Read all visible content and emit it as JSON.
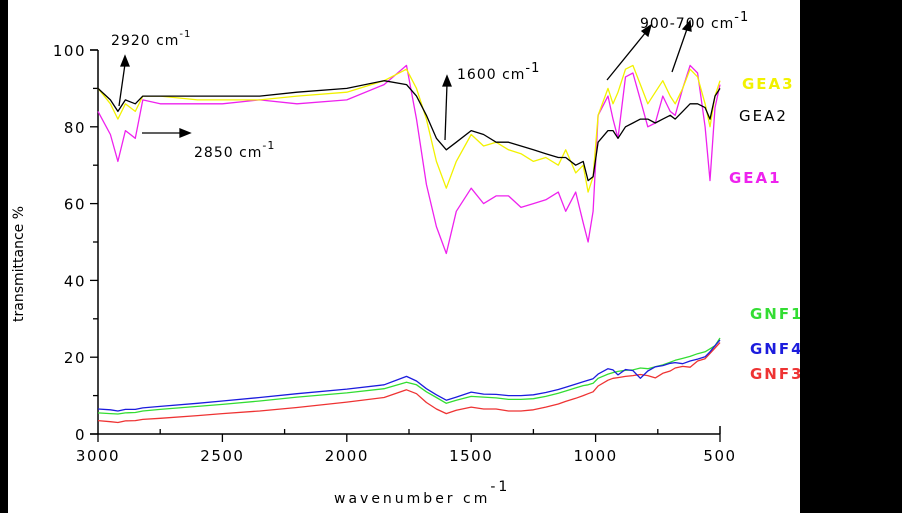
{
  "chart_data": {
    "type": "line",
    "title": "",
    "xlabel": "wavenumber cm",
    "xlabel_sup": "-1",
    "ylabel": "transmittance %",
    "xlim": [
      3000,
      500
    ],
    "ylim": [
      0,
      100
    ],
    "x_ticks": [
      3000,
      2500,
      2000,
      1500,
      1000,
      500
    ],
    "y_ticks": [
      0,
      20,
      40,
      60,
      80,
      100
    ],
    "grid": false,
    "legend_position": "right, inline labels",
    "annotations": [
      {
        "text": "2920 cm",
        "sup": "-1"
      },
      {
        "text": "2850 cm",
        "sup": "-1"
      },
      {
        "text": "1600 cm",
        "sup": "-1"
      },
      {
        "text": "900-700 cm",
        "sup": "-1"
      }
    ],
    "x": [
      3000,
      2950,
      2920,
      2890,
      2850,
      2820,
      2750,
      2600,
      2500,
      2350,
      2200,
      2000,
      1850,
      1760,
      1720,
      1680,
      1640,
      1600,
      1560,
      1500,
      1450,
      1400,
      1350,
      1300,
      1250,
      1200,
      1150,
      1120,
      1080,
      1050,
      1030,
      1010,
      990,
      950,
      930,
      910,
      880,
      850,
      820,
      790,
      760,
      730,
      700,
      680,
      650,
      620,
      590,
      560,
      540,
      520,
      500
    ],
    "series": [
      {
        "name": "GEA3",
        "color": "#f2f200",
        "values": [
          90,
          86,
          82,
          86,
          84,
          88,
          88,
          87,
          87,
          87,
          88,
          89,
          92,
          95,
          90,
          82,
          71,
          64,
          71,
          78,
          75,
          76,
          74,
          73,
          71,
          72,
          70,
          74,
          68,
          70,
          63,
          67,
          83,
          90,
          86,
          89,
          95,
          96,
          91,
          86,
          89,
          92,
          88,
          86,
          90,
          95,
          93,
          86,
          80,
          88,
          92
        ]
      },
      {
        "name": "GEA2",
        "color": "#000000",
        "values": [
          90,
          87,
          84,
          87,
          86,
          88,
          88,
          88,
          88,
          88,
          89,
          90,
          92,
          91,
          88,
          83,
          77,
          74,
          76,
          79,
          78,
          76,
          76,
          75,
          74,
          73,
          72,
          72,
          70,
          71,
          66,
          67,
          76,
          79,
          79,
          77,
          80,
          81,
          82,
          82,
          81,
          82,
          83,
          82,
          84,
          86,
          86,
          85,
          82,
          88,
          90
        ]
      },
      {
        "name": "GEA1",
        "color": "#ee22ee",
        "values": [
          84,
          78,
          71,
          79,
          77,
          87,
          86,
          86,
          86,
          87,
          86,
          87,
          91,
          96,
          82,
          65,
          54,
          47,
          58,
          64,
          60,
          62,
          62,
          59,
          60,
          61,
          63,
          58,
          63,
          55,
          50,
          58,
          83,
          88,
          82,
          77,
          93,
          94,
          87,
          80,
          81,
          88,
          84,
          83,
          90,
          96,
          94,
          80,
          66,
          85,
          91
        ]
      },
      {
        "name": "GNF1",
        "color": "#33dd33",
        "values": [
          5.5,
          5.3,
          5.2,
          5.5,
          5.6,
          6.0,
          6.4,
          7.2,
          7.7,
          8.6,
          9.6,
          10.7,
          11.8,
          13.5,
          12.8,
          11.0,
          9.5,
          8.0,
          8.8,
          9.8,
          9.6,
          9.4,
          9.0,
          9.0,
          9.2,
          9.8,
          10.6,
          11.2,
          12.0,
          12.6,
          12.8,
          13.2,
          14.5,
          15.6,
          16.0,
          16.3,
          16.6,
          16.7,
          17.2,
          17.0,
          17.5,
          18.0,
          18.7,
          19.2,
          19.7,
          20.2,
          20.9,
          21.4,
          22.2,
          23.0,
          25.0
        ]
      },
      {
        "name": "GNF4",
        "color": "#1c1cdd",
        "values": [
          6.5,
          6.3,
          6.0,
          6.4,
          6.4,
          6.8,
          7.2,
          8.0,
          8.6,
          9.5,
          10.5,
          11.7,
          12.8,
          15.0,
          13.8,
          11.8,
          10.2,
          8.8,
          9.6,
          10.9,
          10.4,
          10.3,
          10.0,
          10.0,
          10.2,
          10.8,
          11.6,
          12.2,
          13.0,
          13.6,
          14.0,
          14.4,
          15.6,
          17.0,
          16.7,
          15.4,
          16.8,
          16.5,
          14.5,
          16.4,
          17.5,
          17.8,
          18.4,
          18.6,
          18.3,
          19.0,
          19.5,
          20.1,
          21.4,
          23.0,
          24.5
        ]
      },
      {
        "name": "GNF3",
        "color": "#ee3333",
        "values": [
          3.5,
          3.2,
          3.0,
          3.4,
          3.5,
          3.8,
          4.1,
          4.8,
          5.3,
          6.0,
          6.9,
          8.3,
          9.5,
          11.5,
          10.5,
          8.2,
          6.5,
          5.3,
          6.2,
          7.0,
          6.5,
          6.5,
          6.0,
          6.0,
          6.3,
          7.0,
          7.8,
          8.5,
          9.3,
          10.0,
          10.5,
          11.0,
          12.5,
          14.0,
          14.5,
          14.7,
          15.0,
          15.2,
          15.5,
          15.2,
          14.6,
          15.8,
          16.4,
          17.2,
          17.6,
          17.4,
          19.0,
          19.6,
          21.0,
          22.4,
          23.8
        ]
      }
    ]
  },
  "legend": {
    "GEA3": {
      "label": "GEA3",
      "color": "#f2f200"
    },
    "GEA2": {
      "label": "GEA2",
      "color": "#000000"
    },
    "GEA1": {
      "label": "GEA1",
      "color": "#ee22ee"
    },
    "GNF1": {
      "label": "GNF1",
      "color": "#33dd33"
    },
    "GNF4": {
      "label": "GNF4",
      "color": "#1c1cdd"
    },
    "GNF3": {
      "label": "GNF3",
      "color": "#ee3333"
    }
  },
  "axes": {
    "x_ticks": [
      "3000",
      "2500",
      "2000",
      "1500",
      "1000",
      "500"
    ],
    "y_ticks": [
      "0",
      "20",
      "40",
      "60",
      "80",
      "100"
    ],
    "xlabel": "wavenumber cm",
    "xlabel_sup": "-1",
    "ylabel": "transmittance %"
  },
  "annotations": {
    "a2920": {
      "text": "2920 cm",
      "sup": "-1"
    },
    "a2850": {
      "text": "2850 cm",
      "sup": "-1"
    },
    "a1600": {
      "text": "1600 cm",
      "sup": "-1"
    },
    "a900": {
      "text": "900-700 cm",
      "sup": "-1"
    }
  }
}
